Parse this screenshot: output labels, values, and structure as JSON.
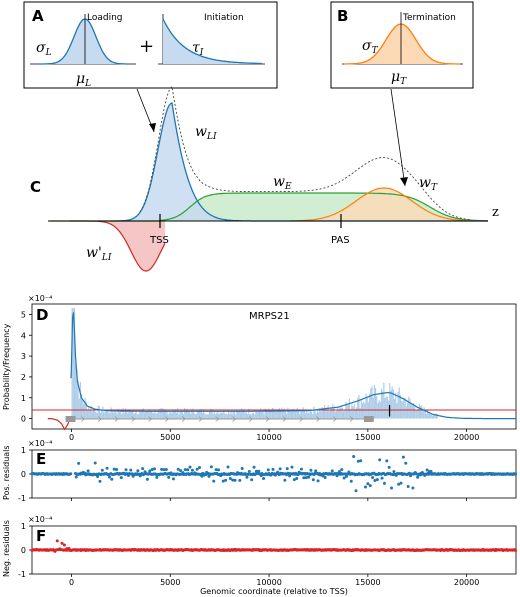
{
  "panels": {
    "A": {
      "letter": "A",
      "loading_label": "Loading",
      "initiation_label": "Initiation",
      "sigma": "σ",
      "sigma_sub": "L",
      "mu": "μ",
      "mu_sub": "L",
      "tau": "τ",
      "tau_sub": "I",
      "plus": "+"
    },
    "B": {
      "letter": "B",
      "termination_label": "Termination",
      "sigma": "σ",
      "sigma_sub": "T",
      "mu": "μ",
      "mu_sub": "T"
    },
    "C": {
      "letter": "C",
      "w_li": "w",
      "w_li_sub": "LI",
      "w_e": "w",
      "w_e_sub": "E",
      "w_t": "w",
      "w_t_sub": "T",
      "w_prime": "w'",
      "w_prime_sub": "LI",
      "tss": "TSS",
      "pas": "PAS",
      "z": "z"
    },
    "D": {
      "letter": "D",
      "title": "MRPS21",
      "ylabel": "Probability/Frequency",
      "scale": "×10⁻⁴"
    },
    "E": {
      "letter": "E",
      "ylabel": "Pos. residuals",
      "scale": "×10⁻⁴"
    },
    "F": {
      "letter": "F",
      "ylabel": "Neg. residuals",
      "scale": "×10⁻⁴",
      "xlabel": "Genomic coordinate (relative to TSS)"
    }
  },
  "colors": {
    "blue": "#1f77b4",
    "blue_fill": "#c6dbef",
    "green": "#2ca02c",
    "green_fill": "#cdeccd",
    "orange": "#ff7f0e",
    "orange_fill": "#fdd9b5",
    "red": "#d62728",
    "red_fill": "#f4c6c6",
    "hist": "#aecde8"
  },
  "chart_data": [
    {
      "type": "line",
      "panel": "D",
      "title": "MRPS21",
      "ylabel": "Probability/Frequency",
      "xlim": [
        -2000,
        22500
      ],
      "ylim": [
        -0.5,
        5.5
      ],
      "y_scale_label": "×10⁻⁴",
      "xticks": [
        0,
        5000,
        10000,
        15000,
        20000
      ],
      "yticks": [
        0,
        1,
        2,
        3,
        4,
        5
      ],
      "series": [
        {
          "x": [
            -1000,
            -700,
            -500,
            -350,
            -200,
            -100,
            0,
            50,
            100,
            150,
            200,
            300,
            500,
            800,
            1200,
            1800,
            2500,
            4000,
            6000,
            9000,
            12000,
            13500,
            14500,
            15300,
            16000,
            16200,
            16800,
            17500,
            18300,
            19000,
            19800,
            21000,
            22500
          ],
          "values": [
            0,
            -0.08,
            -0.25,
            -0.52,
            -0.3,
            -0.05,
            2.6,
            4.8,
            5.1,
            4.2,
            3.0,
            1.8,
            1.0,
            0.6,
            0.45,
            0.38,
            0.36,
            0.35,
            0.35,
            0.35,
            0.38,
            0.55,
            0.85,
            1.15,
            1.25,
            1.22,
            0.95,
            0.55,
            0.2,
            0.06,
            0.01,
            0,
            0
          ]
        }
      ],
      "marks": [
        16100
      ],
      "hist_description_values": {
        "x": [
          0,
          100,
          5000,
          10000,
          15000,
          16000,
          17000
        ],
        "values": [
          5.2,
          3.0,
          0.45,
          0.5,
          1.2,
          1.5,
          0.7
        ]
      }
    },
    {
      "type": "scatter",
      "panel": "E",
      "ylabel": "Pos. residuals",
      "xlim": [
        -2000,
        22500
      ],
      "ylim": [
        -1,
        1
      ],
      "y_scale_label": "×10⁻⁴",
      "yticks": [
        -1,
        0,
        1
      ],
      "xticks": [
        0,
        5000,
        10000,
        15000,
        20000
      ]
    },
    {
      "type": "scatter",
      "panel": "F",
      "ylabel": "Neg. residuals",
      "xlabel": "Genomic coordinate (relative to TSS)",
      "xlim": [
        -2000,
        22500
      ],
      "ylim": [
        -1,
        1
      ],
      "y_scale_label": "×10⁻⁴",
      "yticks": [
        -1,
        0,
        1
      ],
      "xticks": [
        0,
        5000,
        10000,
        15000,
        20000
      ],
      "xticklabels": [
        "0",
        "5000",
        "10000",
        "15000",
        "20000"
      ]
    }
  ]
}
